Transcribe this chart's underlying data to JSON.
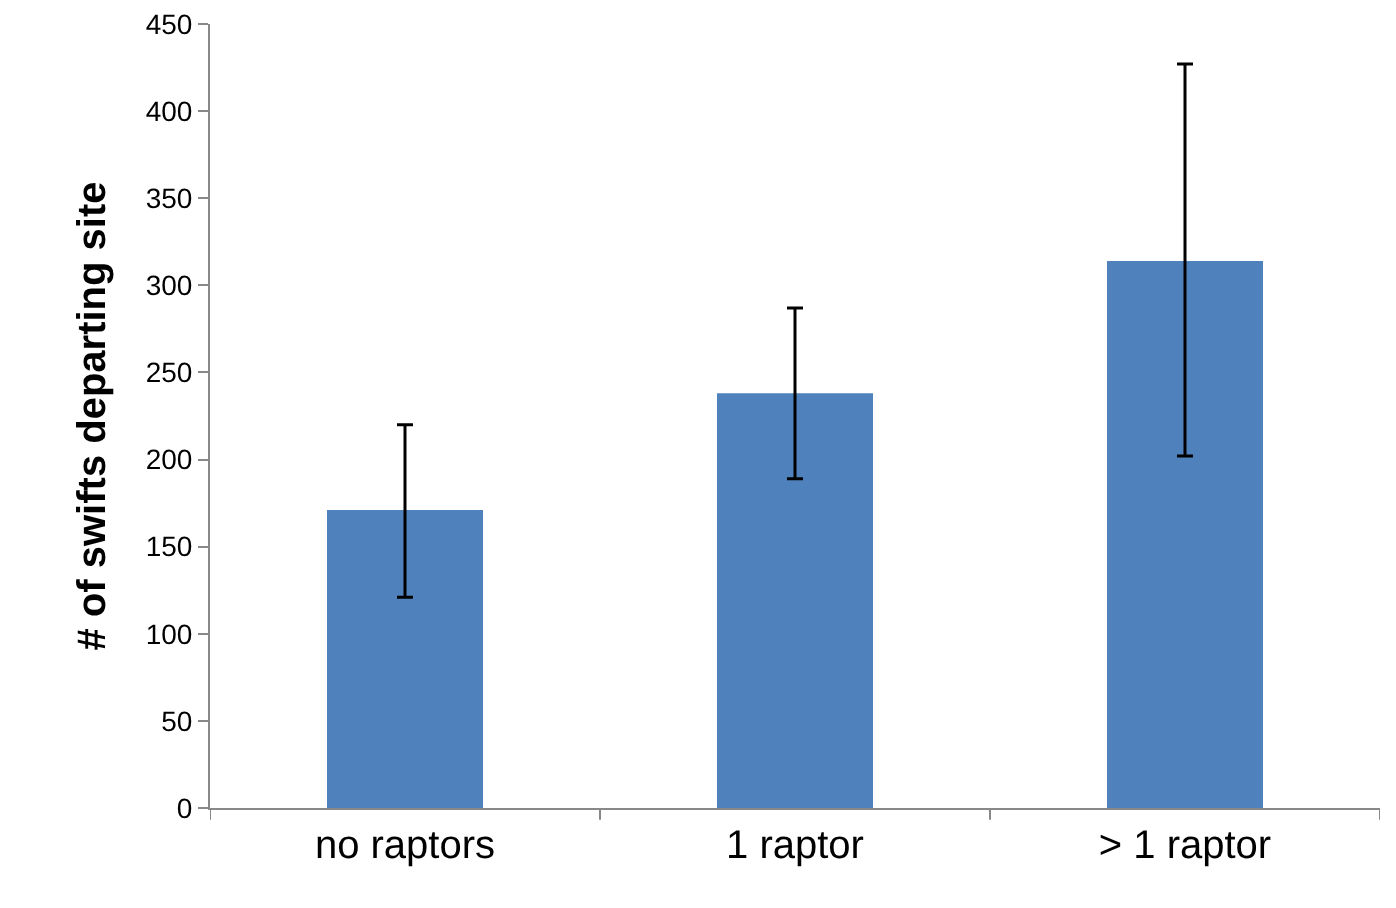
{
  "chart_data": {
    "type": "bar",
    "ylabel": "# of swifts departing site",
    "categories": [
      "no raptors",
      "1 raptor",
      "> 1 raptor"
    ],
    "values": [
      171,
      238,
      314
    ],
    "color": "#4f81bd",
    "errors": [
      [
        121,
        220
      ],
      [
        189,
        287
      ],
      [
        202,
        427
      ]
    ],
    "ylim": [
      0,
      450
    ],
    "yticks": [
      0,
      50,
      100,
      150,
      200,
      250,
      300,
      350,
      400,
      450
    ],
    "grid": false
  }
}
